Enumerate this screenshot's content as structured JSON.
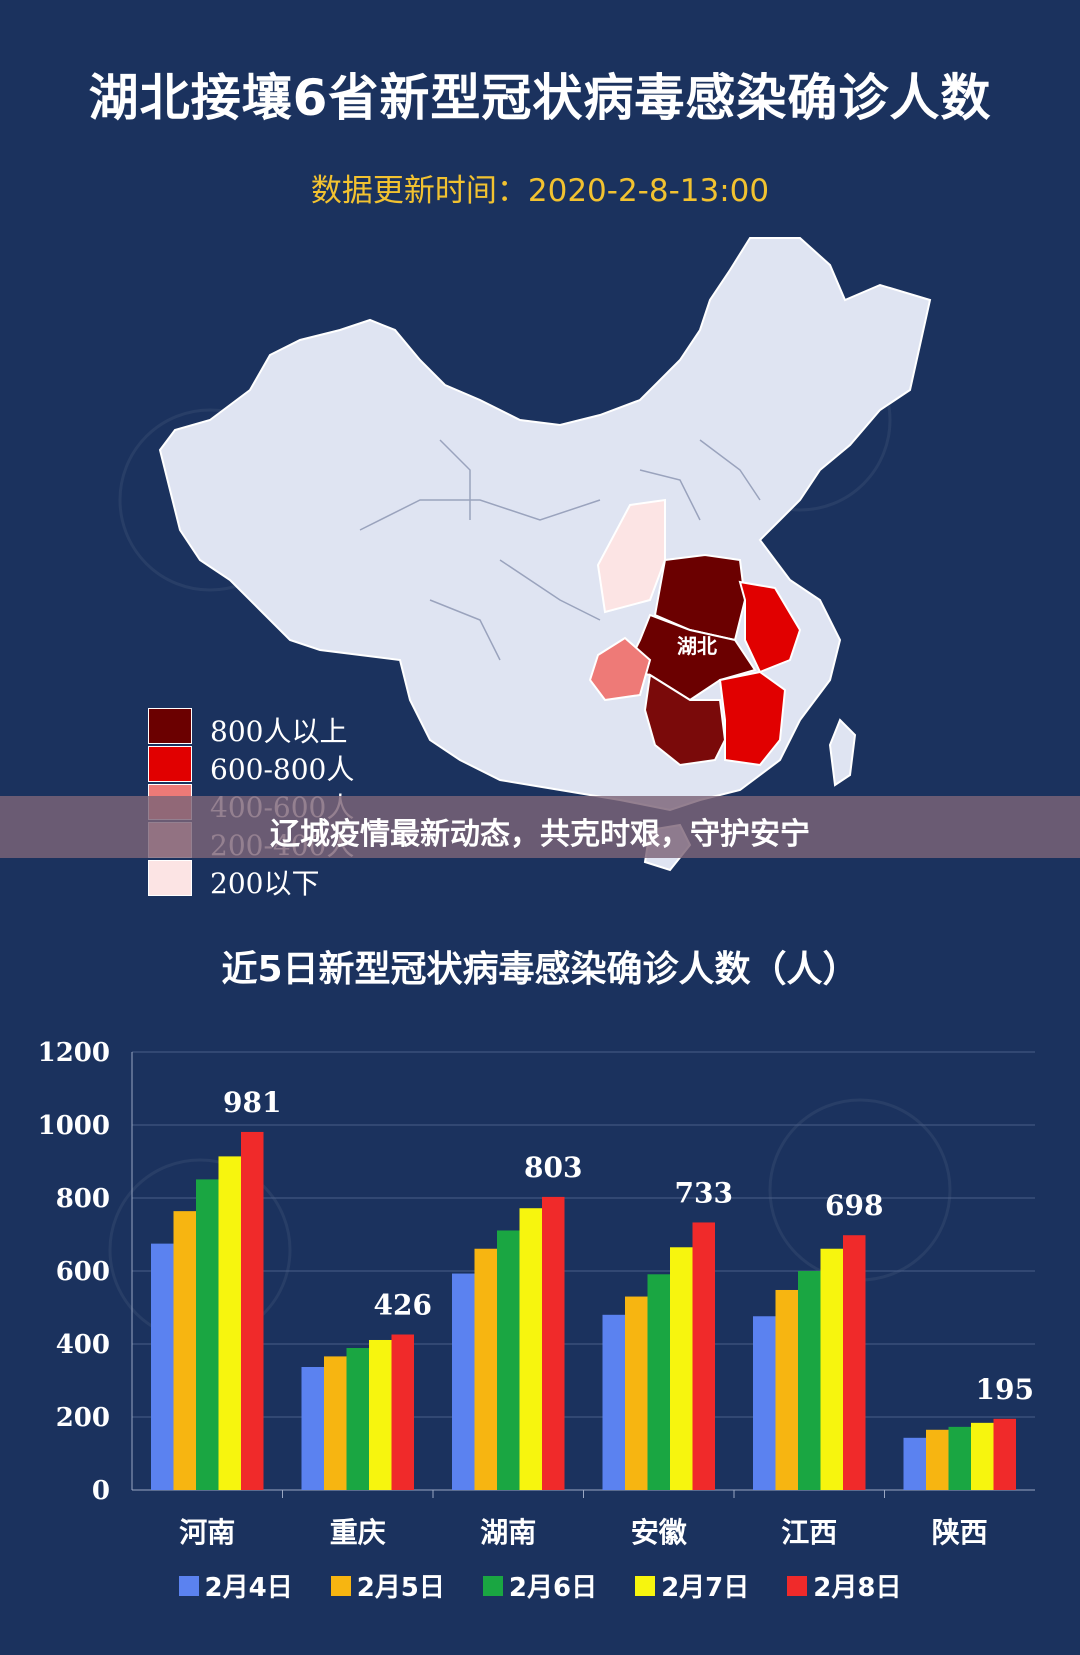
{
  "header": {
    "title": "湖北接壤6省新型冠状病毒感染确诊人数",
    "update_time": "数据更新时间：2020-2-8-13:00"
  },
  "map": {
    "center_label": "湖北",
    "legend": [
      {
        "label": "800人以上",
        "color": "#6b0000"
      },
      {
        "label": "600-800人",
        "color": "#e10000"
      },
      {
        "label": "400-600人",
        "color": "#ee7a77"
      },
      {
        "label": "200-400人",
        "color": "#f3b3b0"
      },
      {
        "label": "200以下",
        "color": "#fce4e4"
      }
    ]
  },
  "banner": {
    "text": "辽城疫情最新动态，共克时艰，守护安宁"
  },
  "chart_data": {
    "type": "bar",
    "title": "近5日新型冠状病毒感染确诊人数（人）",
    "categories": [
      "河南",
      "重庆",
      "湖南",
      "安徽",
      "江西",
      "陕西"
    ],
    "series": [
      {
        "name": "2月4日",
        "color": "#5b82f0",
        "values": [
          675,
          337,
          593,
          480,
          476,
          143
        ]
      },
      {
        "name": "2月5日",
        "color": "#f7b511",
        "values": [
          764,
          366,
          661,
          530,
          548,
          165
        ]
      },
      {
        "name": "2月6日",
        "color": "#1aa642",
        "values": [
          851,
          389,
          711,
          591,
          600,
          173
        ]
      },
      {
        "name": "2月7日",
        "color": "#f7f50e",
        "values": [
          914,
          411,
          772,
          665,
          661,
          184
        ]
      },
      {
        "name": "2月8日",
        "color": "#f02a2a",
        "values": [
          981,
          426,
          803,
          733,
          698,
          195
        ]
      }
    ],
    "ylim": [
      0,
      1200
    ],
    "yticks": [
      0,
      200,
      400,
      600,
      800,
      1000,
      1200
    ],
    "data_labels": [
      "981",
      "426",
      "803",
      "733",
      "698",
      "195"
    ],
    "grid": true,
    "legend_position": "bottom"
  }
}
